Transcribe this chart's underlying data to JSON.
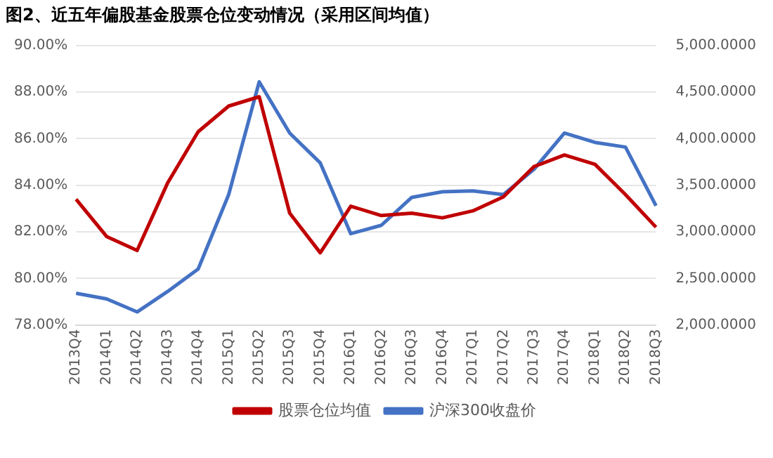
{
  "chart_data": {
    "type": "line",
    "title": "图2、近五年偏股基金股票仓位变动情况（采用区间均值）",
    "categories": [
      "2013Q4",
      "2014Q1",
      "2014Q2",
      "2014Q3",
      "2014Q4",
      "2015Q1",
      "2015Q2",
      "2015Q3",
      "2015Q4",
      "2016Q1",
      "2016Q2",
      "2016Q3",
      "2016Q4",
      "2017Q1",
      "2017Q2",
      "2017Q3",
      "2017Q4",
      "2018Q1",
      "2018Q2",
      "2018Q3"
    ],
    "series": [
      {
        "name": "股票仓位均值",
        "color": "#c00000",
        "values": [
          83.4,
          81.8,
          81.2,
          84.1,
          86.3,
          87.4,
          87.8,
          82.8,
          81.1,
          83.1,
          82.7,
          82.8,
          82.6,
          82.9,
          83.5,
          84.8,
          85.3,
          84.9,
          83.6,
          82.2
        ]
      },
      {
        "name": "沪深300收盘价",
        "color": "#4472c4",
        "axis": "y2",
        "values": [
          2340,
          2280,
          2140,
          2360,
          2600,
          3400,
          4610,
          4060,
          3740,
          2980,
          3070,
          3370,
          3430,
          3440,
          3400,
          3670,
          4060,
          3960,
          3910,
          3280
        ]
      }
    ],
    "ylim": [
      78,
      90
    ],
    "yticks": [
      {
        "value": 78,
        "label": "78.00%"
      },
      {
        "value": 80,
        "label": "80.00%"
      },
      {
        "value": 82,
        "label": "82.00%"
      },
      {
        "value": 84,
        "label": "84.00%"
      },
      {
        "value": 86,
        "label": "86.00%"
      },
      {
        "value": 88,
        "label": "88.00%"
      },
      {
        "value": 90,
        "label": "90.00%"
      }
    ],
    "y2lim": [
      2000,
      5000
    ],
    "y2ticks": [
      {
        "value": 2000,
        "label": "2,000.0000"
      },
      {
        "value": 2500,
        "label": "2,500.0000"
      },
      {
        "value": 3000,
        "label": "3,000.0000"
      },
      {
        "value": 3500,
        "label": "3,500.0000"
      },
      {
        "value": 4000,
        "label": "4,000.0000"
      },
      {
        "value": 4500,
        "label": "4,500.0000"
      },
      {
        "value": 5000,
        "label": "5,000.0000"
      }
    ],
    "grid": "y",
    "legend": "bottom",
    "marker": "none",
    "line_style": "solid"
  }
}
